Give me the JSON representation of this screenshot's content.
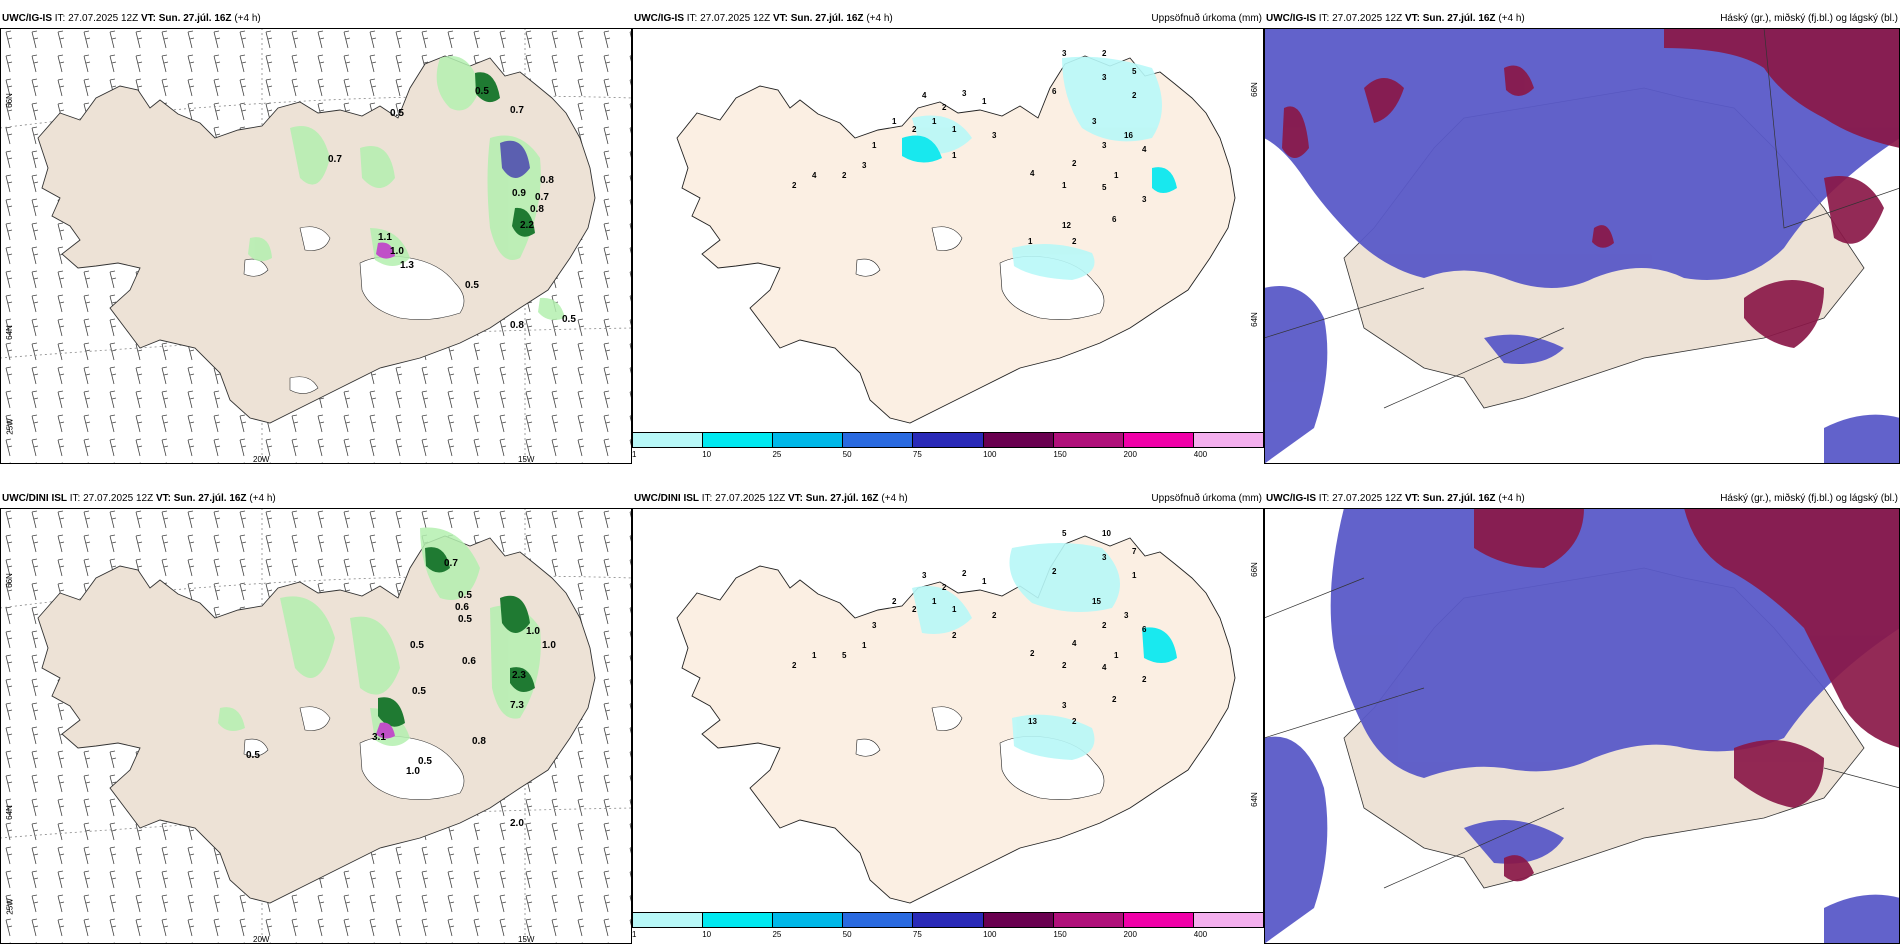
{
  "rows": [
    {
      "model": "UWC/IG-IS",
      "it": "IT: 27.07.2025 12Z",
      "vt": "VT: Sun. 27.júl. 16Z",
      "lead": "(+4 h)",
      "precip_values": [
        "0.7",
        "0.5",
        "0.7",
        "0.5",
        "0.8",
        "0.9",
        "0.7",
        "0.8",
        "2.2",
        "1.1",
        "1.0",
        "1.3",
        "0.5",
        "0.8",
        "0.5"
      ],
      "accum_values": [
        "3",
        "2",
        "5",
        "3",
        "2",
        "6",
        "3",
        "16",
        "3",
        "4",
        "2",
        "1",
        "4",
        "1",
        "5",
        "3",
        "6",
        "12",
        "2",
        "1",
        "4",
        "2",
        "3",
        "1",
        "1",
        "1",
        "1",
        "2",
        "1",
        "3",
        "2",
        "4",
        "2",
        "1",
        "3"
      ]
    },
    {
      "model": "UWC/DINI ISL",
      "it": "IT: 27.07.2025 12Z",
      "vt": "VT: Sun. 27.júl. 16Z",
      "lead": "(+4 h)",
      "precip_values": [
        "0.7",
        "0.5",
        "0.6",
        "0.5",
        "0.5",
        "0.6",
        "0.5",
        "1.0",
        "1.0",
        "2.3",
        "7.3",
        "0.8",
        "0.5",
        "1.0",
        "3.1",
        "2.0",
        "0.5"
      ],
      "accum_values": [
        "5",
        "10",
        "7",
        "3",
        "1",
        "2",
        "15",
        "3",
        "2",
        "6",
        "4",
        "1",
        "2",
        "2",
        "4",
        "2",
        "2",
        "3",
        "2",
        "13",
        "3",
        "2",
        "2",
        "1",
        "1",
        "1",
        "2",
        "2",
        "3",
        "1",
        "5",
        "1",
        "2",
        "2",
        "2"
      ]
    }
  ],
  "cloud_header_model": "UWC/IG-IS",
  "accum_title": "Uppsöfnuð úrkoma (mm)",
  "cloud_title": "Háský (gr.), miðský (fj.bl.) og lágský (bl.)",
  "colorbar": {
    "ticks": [
      "1",
      "10",
      "25",
      "50",
      "75",
      "100",
      "150",
      "200",
      "400"
    ],
    "colors": [
      "#b8f8f8",
      "#00e8f0",
      "#00b8e8",
      "#2a6ae0",
      "#2a2ab8",
      "#6a0050",
      "#b0107a",
      "#f000a8",
      "#f4b0ee"
    ]
  },
  "axis_labels": {
    "lat66": "66N",
    "lat64": "64N",
    "lon25": "25W",
    "lon20": "20W",
    "lon15": "15W",
    "right66": "66N",
    "right64": "64N"
  },
  "colors": {
    "land": "#ede2d6",
    "accum_land": "#fbefe3",
    "cloud_low": "#5a5ac8",
    "cloud_high": "#8a1848",
    "precip_light": "#b4f0b0",
    "precip_dark": "#1f7a32"
  }
}
